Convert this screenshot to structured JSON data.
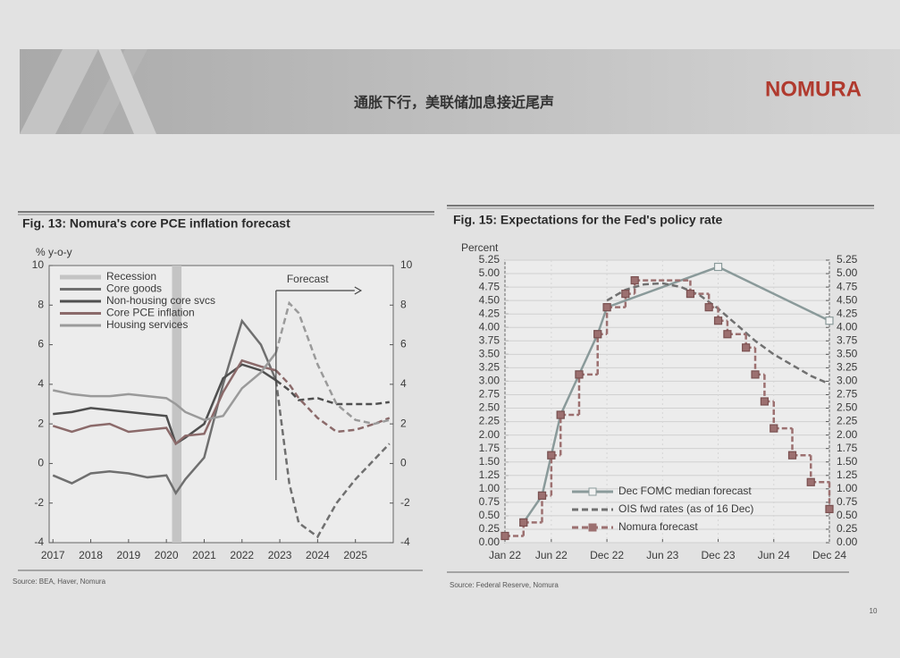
{
  "header": {
    "title": "通胀下行，美联储加息接近尾声",
    "logo": "NOMURA"
  },
  "chart_data": [
    {
      "type": "line",
      "title": "Fig. 13: Nomura's core PCE inflation forecast",
      "y_label": "% y-o-y",
      "x": [
        2017,
        2017.5,
        2018,
        2018.5,
        2019,
        2019.5,
        2020,
        2020.25,
        2020.5,
        2021,
        2021.5,
        2022,
        2022.5,
        2022.9,
        2023.25,
        2023.5,
        2024,
        2024.5,
        2025,
        2025.5,
        2025.9
      ],
      "xlim": [
        2016.9,
        2026
      ],
      "xticks": [
        2017,
        2018,
        2019,
        2020,
        2021,
        2022,
        2023,
        2024,
        2025
      ],
      "ylim": [
        -4,
        10
      ],
      "yticks": [
        -4,
        -2,
        0,
        2,
        4,
        6,
        8,
        10
      ],
      "y2lim": [
        -4,
        10
      ],
      "y2ticks": [
        -4,
        -2,
        0,
        2,
        4,
        6,
        8,
        10
      ],
      "grid": false,
      "legend": "upper left",
      "recession": {
        "name": "Recession",
        "x": [
          2020.15,
          2020.4
        ],
        "color": "#c4c4c4"
      },
      "forecast": {
        "x": 2022.9,
        "label": "Forecast"
      },
      "series": [
        {
          "name": "Core goods",
          "color": "#6f6f6f",
          "values": [
            -0.6,
            -1.0,
            -0.5,
            -0.4,
            -0.5,
            -0.7,
            -0.6,
            -1.5,
            -0.8,
            0.3,
            4.0,
            7.2,
            6.0,
            4.2,
            -1.0,
            -3.0,
            -3.7,
            -2.0,
            -0.8,
            0.2,
            1.0
          ]
        },
        {
          "name": "Non-housing core svcs",
          "color": "#4f4f4f",
          "values": [
            2.5,
            2.6,
            2.8,
            2.7,
            2.6,
            2.5,
            2.4,
            1.0,
            1.3,
            2.0,
            4.3,
            5.0,
            4.7,
            4.2,
            3.7,
            3.2,
            3.3,
            3.0,
            3.0,
            3.0,
            3.1
          ]
        },
        {
          "name": "Core PCE inflation",
          "color": "#8b6a6a",
          "values": [
            1.9,
            1.6,
            1.9,
            2.0,
            1.6,
            1.7,
            1.8,
            1.0,
            1.4,
            1.5,
            3.6,
            5.2,
            4.9,
            4.7,
            4.0,
            3.3,
            2.3,
            1.6,
            1.7,
            2.0,
            2.3
          ]
        },
        {
          "name": "Housing services",
          "color": "#9a9a9a",
          "values": [
            3.7,
            3.5,
            3.4,
            3.4,
            3.5,
            3.4,
            3.3,
            3.0,
            2.6,
            2.2,
            2.4,
            3.8,
            4.6,
            5.6,
            8.1,
            7.6,
            5.0,
            3.0,
            2.2,
            2.0,
            2.2
          ]
        }
      ]
    },
    {
      "type": "line",
      "title": "Fig. 15: Expectations for the Fed's policy rate",
      "y_label": "Percent",
      "xlim": [
        "2022-01",
        "2024-12"
      ],
      "xticks": [
        {
          "value": "2022-01",
          "label": "Jan 22"
        },
        {
          "value": "2022-06",
          "label": "Jun 22"
        },
        {
          "value": "2022-12",
          "label": "Dec 22"
        },
        {
          "value": "2023-06",
          "label": "Jun 23"
        },
        {
          "value": "2023-12",
          "label": "Dec 23"
        },
        {
          "value": "2024-06",
          "label": "Jun 24"
        },
        {
          "value": "2024-12",
          "label": "Dec 24"
        }
      ],
      "ylim": [
        0,
        5.25
      ],
      "yticks": [
        {
          "value": 0,
          "label": "0.00"
        },
        {
          "value": 0.25,
          "label": "0.25"
        },
        {
          "value": 0.5,
          "label": "0.50"
        },
        {
          "value": 0.75,
          "label": "0.75"
        },
        {
          "value": 1,
          "label": "1.00"
        },
        {
          "value": 1.25,
          "label": "1.25"
        },
        {
          "value": 1.5,
          "label": "1.50"
        },
        {
          "value": 1.75,
          "label": "1.75"
        },
        {
          "value": 2,
          "label": "2.00"
        },
        {
          "value": 2.25,
          "label": "2.25"
        },
        {
          "value": 2.5,
          "label": "2.50"
        },
        {
          "value": 2.75,
          "label": "2.75"
        },
        {
          "value": 3,
          "label": "3.00"
        },
        {
          "value": 3.25,
          "label": "3.25"
        },
        {
          "value": 3.5,
          "label": "3.50"
        },
        {
          "value": 3.75,
          "label": "3.75"
        },
        {
          "value": 4,
          "label": "4.00"
        },
        {
          "value": 4.25,
          "label": "4.25"
        },
        {
          "value": 4.5,
          "label": "4.50"
        },
        {
          "value": 4.75,
          "label": "4.75"
        },
        {
          "value": 5,
          "label": "5.00"
        },
        {
          "value": 5.25,
          "label": "5.25"
        }
      ],
      "y2lim": [
        0,
        5.25
      ],
      "y2ticks": [
        {
          "value": 0,
          "label": "0.00"
        },
        {
          "value": 0.25,
          "label": "0.25"
        },
        {
          "value": 0.5,
          "label": "0.50"
        },
        {
          "value": 0.75,
          "label": "0.75"
        },
        {
          "value": 1,
          "label": "1.00"
        },
        {
          "value": 1.25,
          "label": "1.25"
        },
        {
          "value": 1.5,
          "label": "1.50"
        },
        {
          "value": 1.75,
          "label": "1.75"
        },
        {
          "value": 2,
          "label": "2.00"
        },
        {
          "value": 2.25,
          "label": "2.25"
        },
        {
          "value": 2.5,
          "label": "2.50"
        },
        {
          "value": 2.75,
          "label": "2.75"
        },
        {
          "value": 3,
          "label": "3.00"
        },
        {
          "value": 3.25,
          "label": "3.25"
        },
        {
          "value": 3.5,
          "label": "3.50"
        },
        {
          "value": 3.75,
          "label": "3.75"
        },
        {
          "value": 4,
          "label": "4.00"
        },
        {
          "value": 4.25,
          "label": "4.25"
        },
        {
          "value": 4.5,
          "label": "4.50"
        },
        {
          "value": 4.75,
          "label": "4.75"
        },
        {
          "value": 5,
          "label": "5.00"
        },
        {
          "value": 5.25,
          "label": "5.25"
        }
      ],
      "grid": true,
      "legend": "lower left",
      "series": [
        {
          "name": "Dec FOMC median forecast",
          "color": "#8a9a9a",
          "style": "solid",
          "marker": "square-open",
          "x": [
            "2022-03",
            "2022-05",
            "2022-06",
            "2022-07",
            "2022-09",
            "2022-11",
            "2022-12",
            "2023-12",
            "2024-12"
          ],
          "values": [
            0.375,
            0.875,
            1.625,
            2.375,
            3.125,
            3.875,
            4.375,
            5.125,
            4.125
          ]
        },
        {
          "name": "OIS fwd rates (as of 16 Dec)",
          "color": "#707070",
          "style": "dashed",
          "x": [
            "2022-12",
            "2023-02",
            "2023-04",
            "2023-06",
            "2023-08",
            "2023-10",
            "2023-12",
            "2024-02",
            "2024-04",
            "2024-06",
            "2024-08",
            "2024-10",
            "2024-12"
          ],
          "values": [
            4.5,
            4.7,
            4.8,
            4.82,
            4.75,
            4.6,
            4.35,
            4.05,
            3.75,
            3.5,
            3.3,
            3.1,
            2.95
          ]
        },
        {
          "name": "Nomura forecast",
          "color": "#9c7070",
          "style": "step",
          "marker": "square",
          "x": [
            "2022-01",
            "2022-03",
            "2022-05",
            "2022-06",
            "2022-07",
            "2022-09",
            "2022-11",
            "2022-12",
            "2023-02",
            "2023-03",
            "2023-09",
            "2023-11",
            "2023-12",
            "2024-01",
            "2024-03",
            "2024-04",
            "2024-05",
            "2024-06",
            "2024-08",
            "2024-10",
            "2024-12"
          ],
          "values": [
            0.125,
            0.375,
            0.875,
            1.625,
            2.375,
            3.125,
            3.875,
            4.375,
            4.625,
            4.875,
            4.625,
            4.375,
            4.125,
            3.875,
            3.625,
            3.125,
            2.625,
            2.125,
            1.625,
            1.125,
            0.625
          ]
        }
      ]
    }
  ],
  "sources": [
    "Source: BEA, Haver, Nomura",
    "Source: Federal Reserve, Nomura"
  ],
  "page_number": "10"
}
